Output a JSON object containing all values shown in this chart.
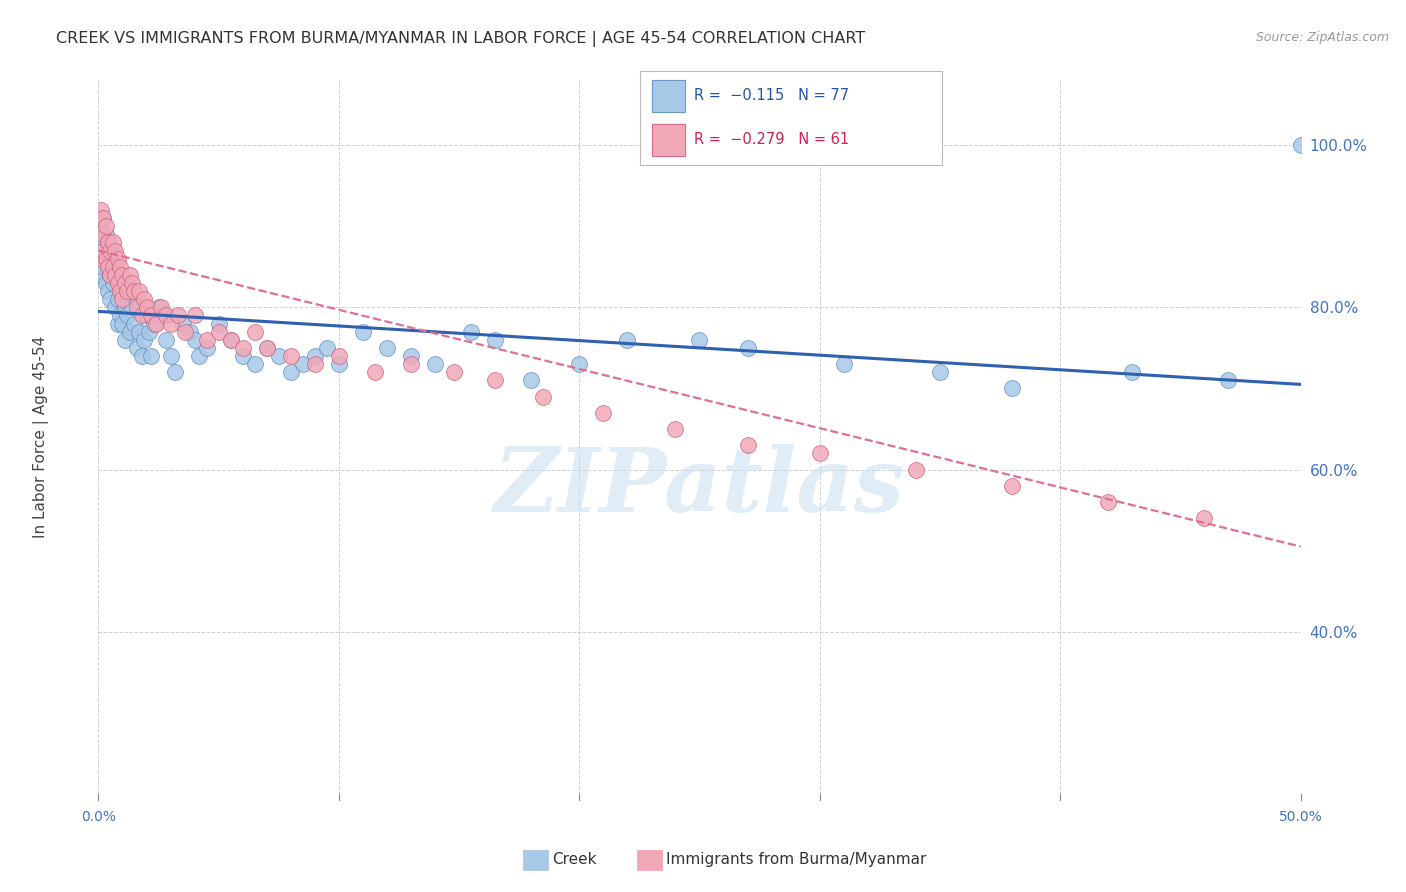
{
  "title": "CREEK VS IMMIGRANTS FROM BURMA/MYANMAR IN LABOR FORCE | AGE 45-54 CORRELATION CHART",
  "source": "Source: ZipAtlas.com",
  "ylabel": "In Labor Force | Age 45-54",
  "ytick_labels": [
    "40.0%",
    "60.0%",
    "80.0%",
    "100.0%"
  ],
  "ytick_values": [
    0.4,
    0.6,
    0.8,
    1.0
  ],
  "xlim": [
    0.0,
    0.5
  ],
  "ylim": [
    0.2,
    1.08
  ],
  "creek_color": "#a8c8e8",
  "creek_edge": "#6090c0",
  "burma_color": "#f0a8b8",
  "burma_edge": "#d06080",
  "creek_line_color": "#3060b0",
  "burma_line_color": "#e07090",
  "grid_color": "#d0d0d0",
  "background_color": "#ffffff",
  "watermark": "ZIPatlas",
  "watermark_color": "#c8ddf0",
  "creek_trend_x0": 0.0,
  "creek_trend_x1": 0.5,
  "creek_trend_y0": 0.795,
  "creek_trend_y1": 0.705,
  "burma_trend_x0": 0.0,
  "burma_trend_x1": 0.5,
  "burma_trend_y0": 0.87,
  "burma_trend_y1": 0.505,
  "creek_scatter_x": [
    0.001,
    0.001,
    0.002,
    0.002,
    0.002,
    0.003,
    0.003,
    0.003,
    0.004,
    0.004,
    0.004,
    0.005,
    0.005,
    0.005,
    0.006,
    0.006,
    0.007,
    0.007,
    0.008,
    0.008,
    0.008,
    0.009,
    0.009,
    0.01,
    0.01,
    0.011,
    0.011,
    0.012,
    0.013,
    0.014,
    0.015,
    0.016,
    0.017,
    0.018,
    0.019,
    0.02,
    0.021,
    0.022,
    0.023,
    0.025,
    0.027,
    0.028,
    0.03,
    0.032,
    0.035,
    0.038,
    0.04,
    0.042,
    0.045,
    0.05,
    0.055,
    0.06,
    0.065,
    0.07,
    0.075,
    0.08,
    0.085,
    0.09,
    0.095,
    0.1,
    0.11,
    0.12,
    0.13,
    0.14,
    0.155,
    0.165,
    0.18,
    0.2,
    0.22,
    0.25,
    0.27,
    0.31,
    0.35,
    0.38,
    0.43,
    0.47,
    0.5
  ],
  "creek_scatter_y": [
    0.87,
    0.84,
    0.91,
    0.88,
    0.85,
    0.89,
    0.86,
    0.83,
    0.88,
    0.85,
    0.82,
    0.86,
    0.84,
    0.81,
    0.87,
    0.83,
    0.85,
    0.8,
    0.84,
    0.81,
    0.78,
    0.83,
    0.79,
    0.82,
    0.78,
    0.8,
    0.76,
    0.79,
    0.77,
    0.8,
    0.78,
    0.75,
    0.77,
    0.74,
    0.76,
    0.79,
    0.77,
    0.74,
    0.78,
    0.8,
    0.79,
    0.76,
    0.74,
    0.72,
    0.78,
    0.77,
    0.76,
    0.74,
    0.75,
    0.78,
    0.76,
    0.74,
    0.73,
    0.75,
    0.74,
    0.72,
    0.73,
    0.74,
    0.75,
    0.73,
    0.77,
    0.75,
    0.74,
    0.73,
    0.77,
    0.76,
    0.71,
    0.73,
    0.76,
    0.76,
    0.75,
    0.73,
    0.72,
    0.7,
    0.72,
    0.71,
    1.0
  ],
  "burma_scatter_x": [
    0.001,
    0.001,
    0.001,
    0.002,
    0.002,
    0.003,
    0.003,
    0.004,
    0.004,
    0.005,
    0.005,
    0.006,
    0.006,
    0.007,
    0.007,
    0.008,
    0.008,
    0.009,
    0.009,
    0.01,
    0.01,
    0.011,
    0.012,
    0.013,
    0.014,
    0.015,
    0.016,
    0.017,
    0.018,
    0.019,
    0.02,
    0.022,
    0.024,
    0.026,
    0.028,
    0.03,
    0.033,
    0.036,
    0.04,
    0.045,
    0.05,
    0.055,
    0.06,
    0.065,
    0.07,
    0.08,
    0.09,
    0.1,
    0.115,
    0.13,
    0.148,
    0.165,
    0.185,
    0.21,
    0.24,
    0.27,
    0.3,
    0.34,
    0.38,
    0.42,
    0.46
  ],
  "burma_scatter_y": [
    0.92,
    0.89,
    0.86,
    0.91,
    0.87,
    0.9,
    0.86,
    0.88,
    0.85,
    0.87,
    0.84,
    0.88,
    0.85,
    0.87,
    0.84,
    0.86,
    0.83,
    0.85,
    0.82,
    0.84,
    0.81,
    0.83,
    0.82,
    0.84,
    0.83,
    0.82,
    0.8,
    0.82,
    0.79,
    0.81,
    0.8,
    0.79,
    0.78,
    0.8,
    0.79,
    0.78,
    0.79,
    0.77,
    0.79,
    0.76,
    0.77,
    0.76,
    0.75,
    0.77,
    0.75,
    0.74,
    0.73,
    0.74,
    0.72,
    0.73,
    0.72,
    0.71,
    0.69,
    0.67,
    0.65,
    0.63,
    0.62,
    0.6,
    0.58,
    0.56,
    0.54
  ],
  "xtick_positions": [
    0.0,
    0.1,
    0.2,
    0.3,
    0.4,
    0.5
  ],
  "xtick_labels": [
    "0.0%",
    "",
    "",
    "",
    "",
    "50.0%"
  ]
}
